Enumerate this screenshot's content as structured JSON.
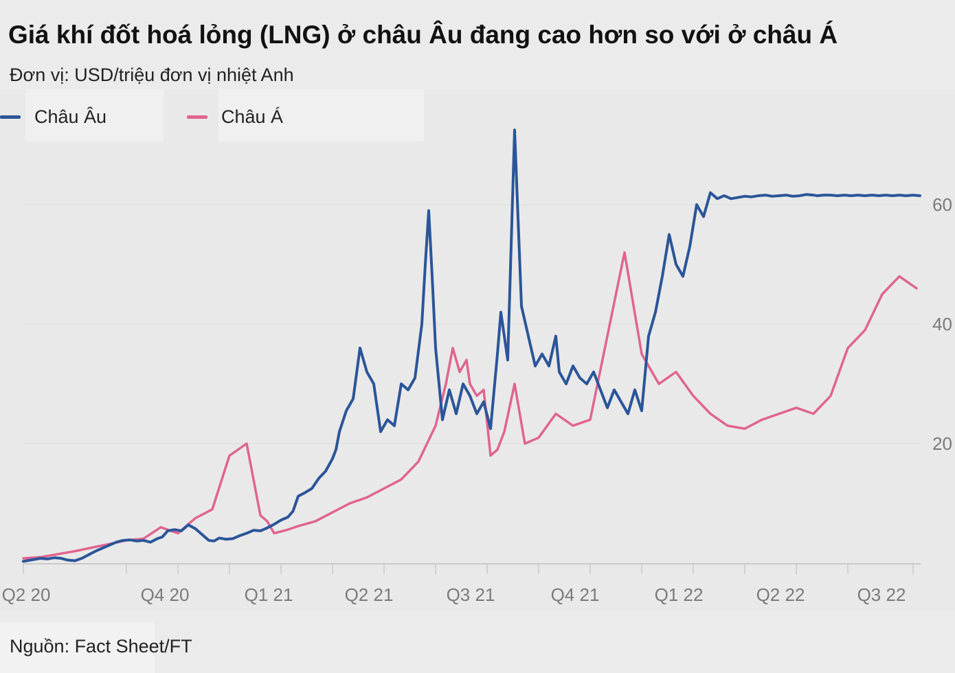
{
  "title": "Giá khí đốt hoá lỏng (LNG) ở châu Âu đang cao hơn so với ở châu Á",
  "subtitle": "Đơn vị: USD/triệu đơn vị nhiệt Anh",
  "source": "Nguồn: Fact Sheet/FT",
  "colors": {
    "europe": "#2a5599",
    "asia": "#e0648f",
    "grid": "#dadada",
    "axis": "#c9c9c9"
  },
  "chart_data": {
    "type": "line",
    "title": "Giá khí đốt hoá lỏng (LNG) ở châu Âu đang cao hơn so với ở châu Á",
    "ylabel": "Đơn vị: USD/triệu đơn vị nhiệt Anh",
    "ylim": [
      0,
      70
    ],
    "y_ticks": [
      "20",
      "40",
      "60"
    ],
    "x_ticks": [
      "Q2 20",
      "Q4 20",
      "Q1 21",
      "Q2 21",
      "Q3 21",
      "Q4 21",
      "Q1 22",
      "Q2 22",
      "Q3 22"
    ],
    "grid": "horizontal",
    "legend_position": "top-left",
    "series": [
      {
        "name": "Châu Âu",
        "x": [
          0.0,
          0.3,
          0.5,
          0.7,
          0.9,
          1.1,
          1.3,
          1.5,
          1.7,
          1.9,
          2.1,
          2.3,
          2.5,
          2.7,
          2.9,
          3.1,
          3.3,
          3.5,
          3.7,
          3.9,
          4.05,
          4.2,
          4.4,
          4.6,
          4.8,
          5.0,
          5.2,
          5.4,
          5.55,
          5.7,
          5.9,
          6.1,
          6.3,
          6.5,
          6.7,
          6.9,
          7.1,
          7.3,
          7.5,
          7.7,
          7.85,
          8.0,
          8.2,
          8.4,
          8.6,
          8.8,
          9.0,
          9.1,
          9.2,
          9.4,
          9.6,
          9.8,
          10.0,
          10.2,
          10.4,
          10.6,
          10.8,
          11.0,
          11.2,
          11.4,
          11.6,
          11.7,
          11.8,
          11.9,
          12.0,
          12.2,
          12.4,
          12.6,
          12.8,
          13.0,
          13.2,
          13.4,
          13.6,
          13.8,
          13.9,
          14.1,
          14.3,
          14.5,
          14.7,
          14.9,
          15.1,
          15.3,
          15.5,
          15.6,
          15.8,
          16.0,
          16.2,
          16.4,
          16.6,
          16.8,
          17.0,
          17.2,
          17.4,
          17.6,
          17.8,
          18.0,
          18.2,
          18.4,
          18.6,
          18.8,
          19.0,
          19.2,
          19.4,
          19.6,
          19.8,
          20.0,
          20.2,
          20.4,
          20.6,
          20.8,
          21.0,
          21.2,
          21.4,
          21.6,
          21.8,
          22.0,
          22.2,
          22.4,
          22.6,
          22.8,
          23.0,
          23.1,
          23.3,
          23.5,
          23.7,
          23.9,
          24.1,
          24.3,
          24.5,
          24.7,
          24.9,
          25.1,
          25.3,
          25.5,
          25.7,
          25.9,
          26.1
        ],
        "y": [
          0.3,
          0.6,
          0.8,
          0.7,
          0.9,
          0.8,
          0.5,
          0.4,
          0.8,
          1.4,
          2.0,
          2.5,
          3.0,
          3.5,
          3.8,
          3.9,
          3.7,
          3.8,
          3.5,
          4.1,
          4.4,
          5.4,
          5.6,
          5.4,
          6.4,
          5.8,
          4.8,
          3.8,
          3.7,
          4.2,
          4.0,
          4.1,
          4.6,
          5.0,
          5.5,
          5.4,
          5.9,
          6.5,
          7.2,
          7.7,
          8.7,
          11.2,
          11.8,
          12.5,
          14.2,
          15.4,
          17.5,
          19.0,
          22.0,
          25.5,
          27.5,
          36.0,
          32.0,
          30.0,
          22.0,
          24.0,
          23.0,
          30.0,
          29.0,
          31.0,
          40.0,
          50.0,
          59.0,
          48.0,
          36.0,
          24.0,
          29.0,
          25.0,
          30.0,
          28.0,
          25.0,
          27.0,
          22.5,
          35.0,
          42.0,
          34.0,
          72.5,
          43.0,
          38.0,
          33.0,
          35.0,
          33.0,
          38.0,
          32.0,
          30.0,
          33.0,
          31.0,
          30.0,
          32.0,
          29.0,
          26.0,
          29.0,
          27.0,
          25.0,
          29.0,
          25.5,
          38.0,
          42.0,
          48.0,
          55.0,
          50.0,
          48.0,
          53.0,
          60.0,
          58.0,
          62.0,
          61.0,
          61.5,
          61.0,
          61.2,
          61.4,
          61.3,
          61.5,
          61.6,
          61.4,
          61.5,
          61.6,
          61.4,
          61.5,
          61.7,
          61.6,
          61.5,
          61.6,
          61.6,
          61.5,
          61.6,
          61.5,
          61.6,
          61.5,
          61.6,
          61.5,
          61.6,
          61.5,
          61.6,
          61.5,
          61.6,
          61.5
        ]
      },
      {
        "name": "Châu Á",
        "x": [
          0.0,
          0.5,
          1.0,
          1.5,
          2.0,
          2.5,
          3.0,
          3.5,
          4.0,
          4.5,
          5.0,
          5.5,
          6.0,
          6.5,
          6.9,
          7.1,
          7.3,
          7.5,
          7.7,
          8.0,
          8.5,
          9.0,
          9.5,
          10.0,
          10.5,
          11.0,
          11.5,
          12.0,
          12.3,
          12.5,
          12.7,
          12.9,
          13.0,
          13.2,
          13.4,
          13.6,
          13.8,
          14.0,
          14.3,
          14.6,
          15.0,
          15.5,
          16.0,
          16.5,
          17.0,
          17.5,
          18.0,
          18.5,
          19.0,
          19.5,
          20.0,
          20.5,
          21.0,
          21.5,
          22.0,
          22.5,
          23.0,
          23.5,
          24.0,
          24.5,
          25.0,
          25.5,
          26.0
        ],
        "y": [
          0.8,
          1.0,
          1.5,
          2.0,
          2.6,
          3.2,
          3.8,
          4.1,
          6.0,
          5.0,
          7.5,
          9.0,
          18.0,
          20.0,
          8.0,
          7.0,
          5.0,
          5.3,
          5.6,
          6.2,
          7.0,
          8.5,
          10.0,
          11.0,
          12.5,
          14.0,
          17.0,
          23.0,
          30.0,
          36.0,
          32.0,
          34.0,
          30.0,
          28.0,
          29.0,
          18.0,
          19.0,
          22.0,
          30.0,
          20.0,
          21.0,
          25.0,
          23.0,
          24.0,
          38.0,
          52.0,
          35.0,
          30.0,
          32.0,
          28.0,
          25.0,
          23.0,
          22.5,
          24.0,
          25.0,
          26.0,
          25.0,
          28.0,
          36.0,
          39.0,
          45.0,
          48.0,
          46.0
        ]
      }
    ]
  }
}
